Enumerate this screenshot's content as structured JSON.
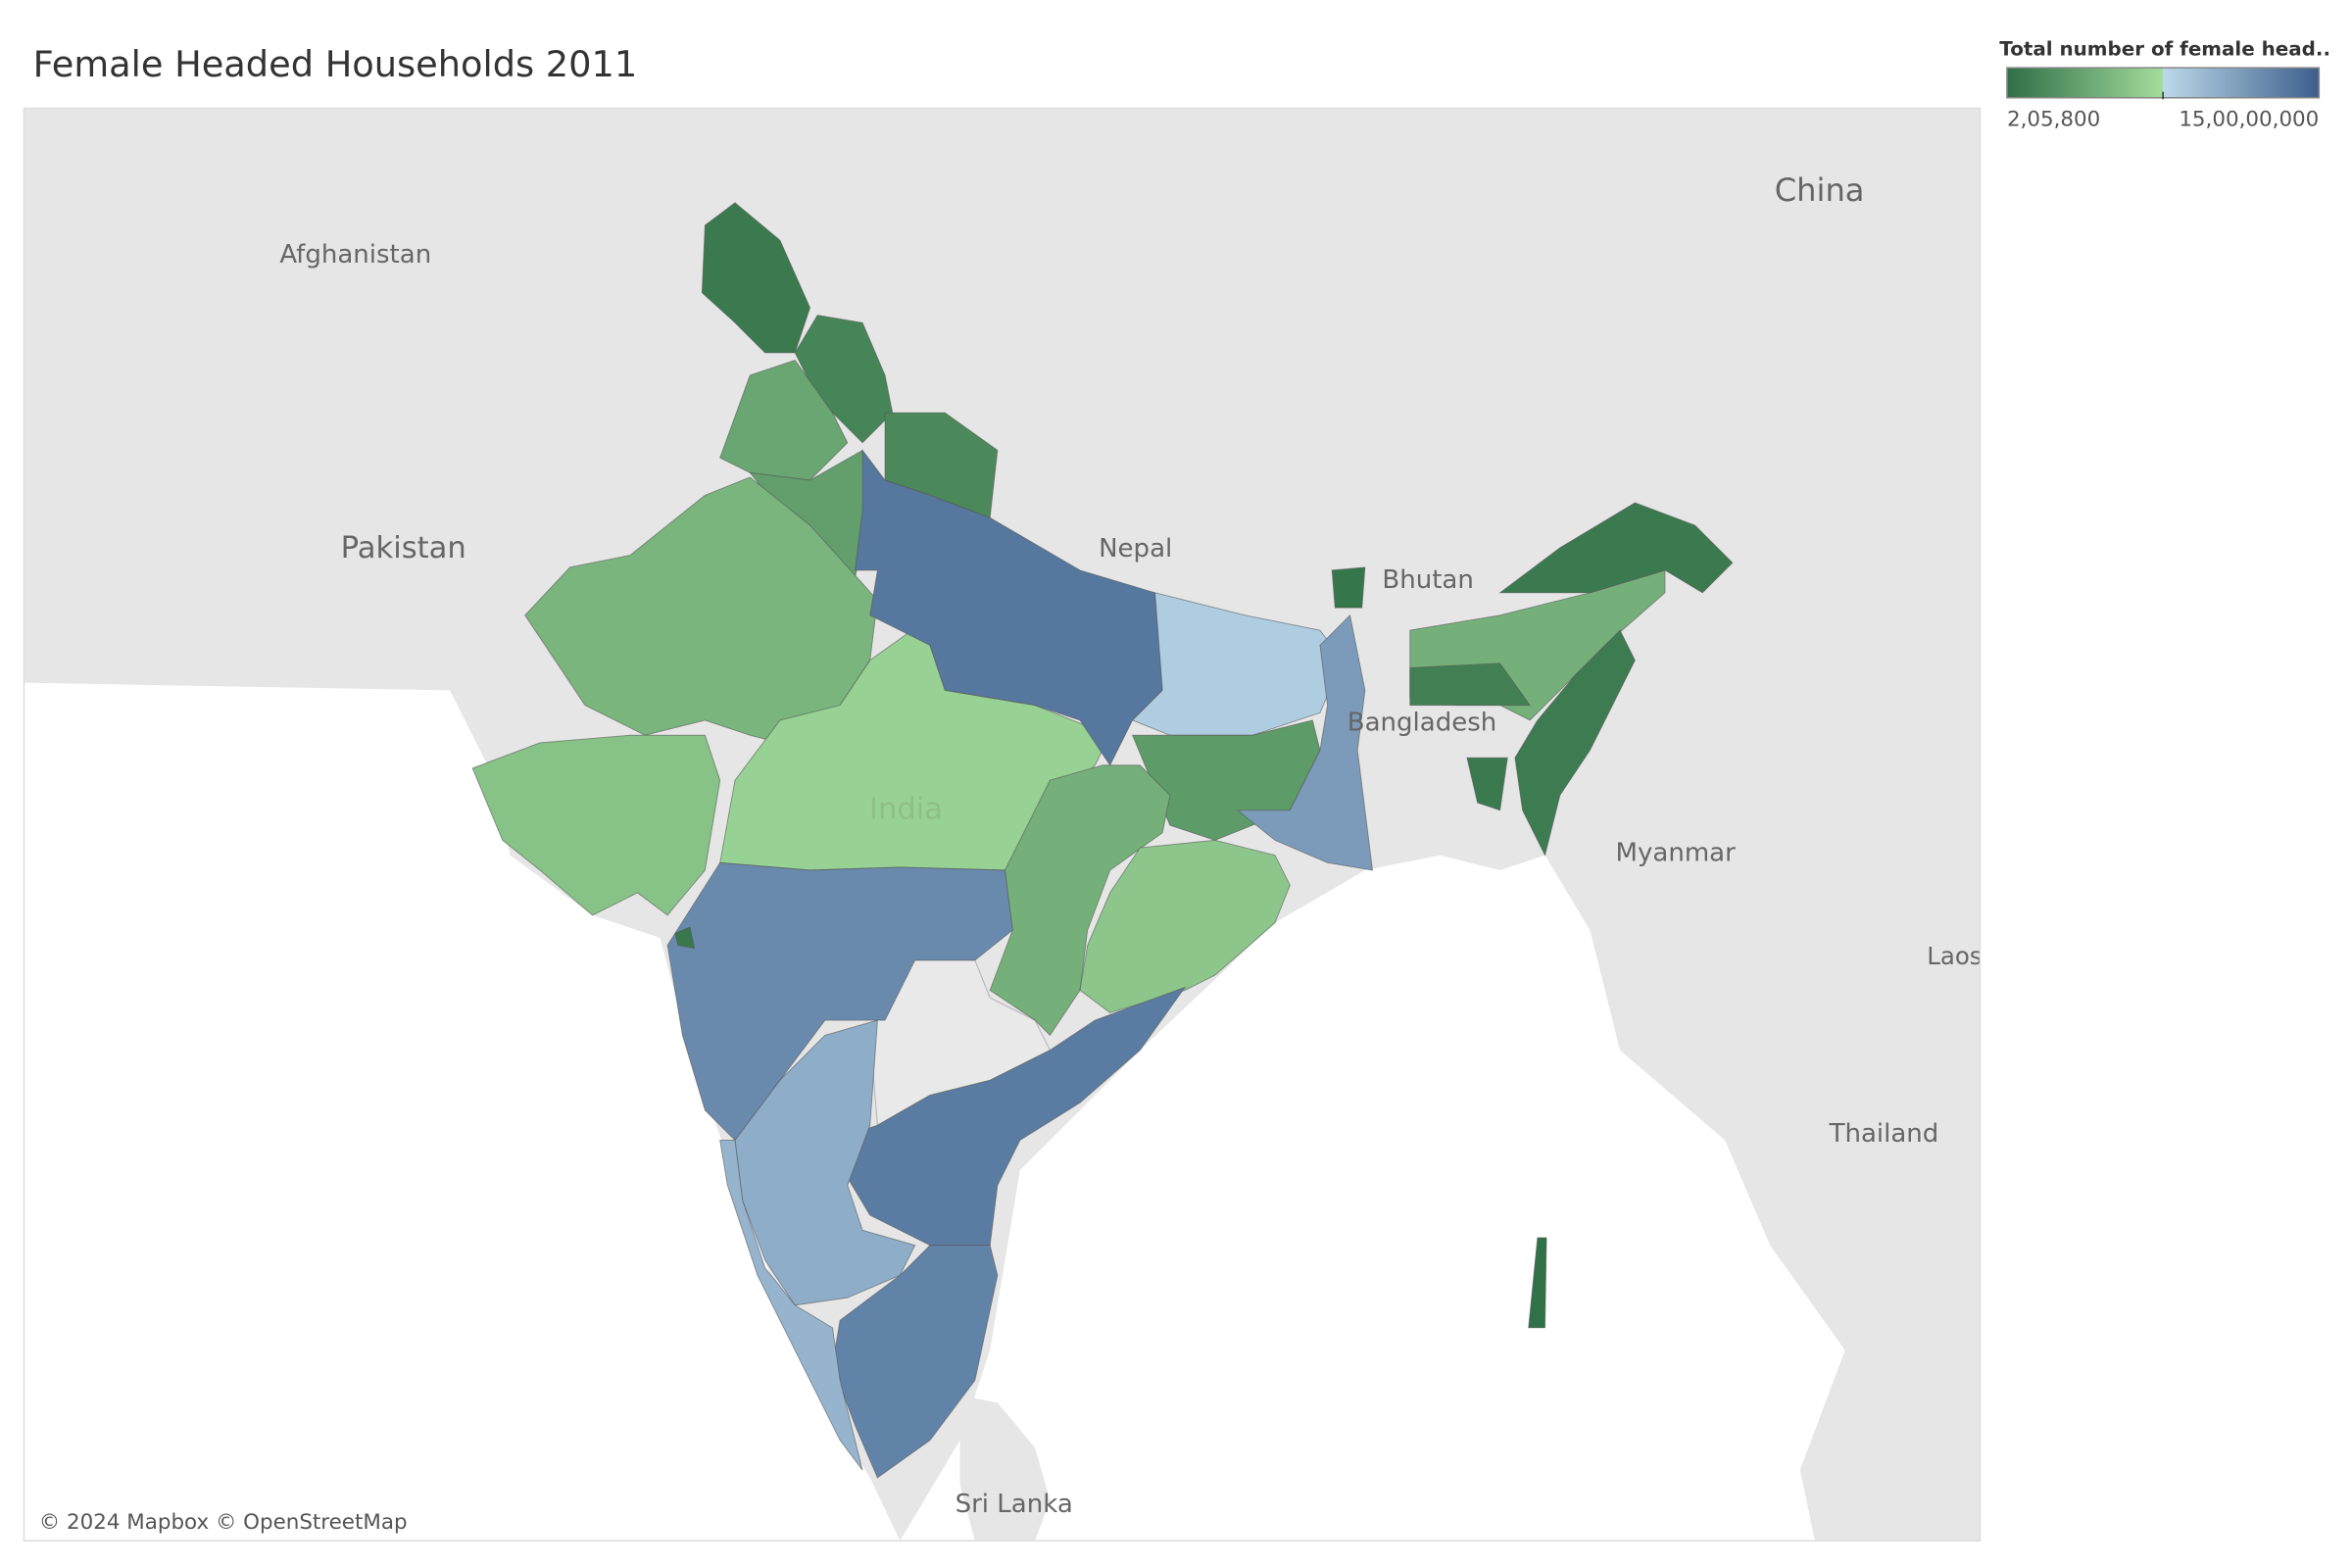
{
  "header": {
    "title": "Female Headed Households 2011"
  },
  "legend": {
    "title": "Total number of female head..",
    "min": {
      "value": 205800,
      "label": "2,05,800"
    },
    "max": {
      "value": 150000000,
      "label": "15,00,00,000"
    },
    "palette": [
      "#2f6f46",
      "#a3dc9c",
      "#bcd9ea",
      "#3c5e8b"
    ]
  },
  "map": {
    "labels": [
      "Afghanistan",
      "Pakistan",
      "China",
      "Nepal",
      "Bhutan",
      "Bangladesh",
      "Myanmar",
      "Laos",
      "Thailand",
      "Sri Lanka",
      "India"
    ],
    "regions": {
      "values": [
        7700000,
        15200000,
        37700000,
        18200000,
        33200000,
        48100000,
        57100000,
        67600000,
        135000000,
        82600000,
        30200000,
        112600000,
        45100000,
        60100000,
        123000000,
        132000000,
        102100000,
        127500000,
        97600000,
        6200000,
        45100000,
        7700000,
        9200000,
        12200000,
        4700000,
        7700000,
        1700000
      ]
    },
    "attribution": "© 2024 Mapbox © OpenStreetMap"
  }
}
